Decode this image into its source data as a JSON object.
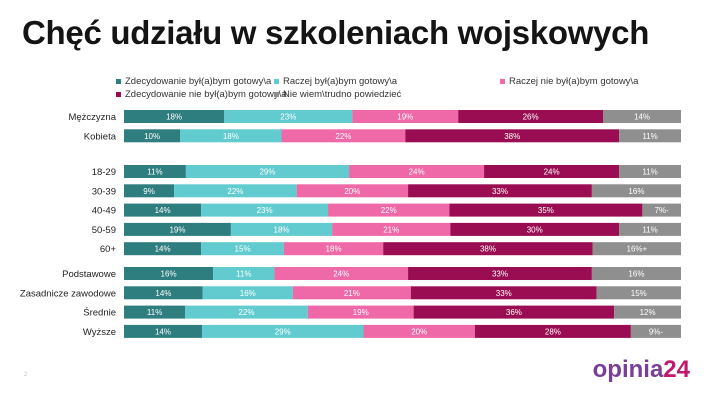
{
  "title": "Chęć udziału w szkoleniach wojskowych",
  "logo": {
    "main": "opinia",
    "number": "24"
  },
  "page_number": "2",
  "chart_data": {
    "type": "bar",
    "orientation": "horizontal",
    "stacked": true,
    "percent_stacked": true,
    "title": "Chęć udziału w szkoleniach wojskowych",
    "legend_position": "top",
    "grid": false,
    "series": [
      {
        "name": "Zdecydowanie był(a)bym gotowy\\a",
        "color": "#2e7d7f"
      },
      {
        "name": "Raczej był(a)bym gotowy\\a",
        "color": "#62cbcf"
      },
      {
        "name": "Raczej nie był(a)bym gotowy\\a",
        "color": "#ef68a7"
      },
      {
        "name": "Zdecydowanie nie był(a)bym gotowy\\a",
        "color": "#9b0d52"
      },
      {
        "name": "Nie wiem\\trudno powiedzieć",
        "color": "#8f8f8f"
      }
    ],
    "groups": [
      {
        "rows": [
          {
            "label": "Mężczyzna",
            "values": [
              18,
              23,
              19,
              26,
              14
            ],
            "value_labels": [
              "18%",
              "23%",
              "19%",
              "26%",
              "14%"
            ]
          },
          {
            "label": "Kobieta",
            "values": [
              10,
              18,
              22,
              38,
              11
            ],
            "value_labels": [
              "10%",
              "18%",
              "22%",
              "38%",
              "11%"
            ]
          }
        ]
      },
      {
        "rows": [
          {
            "label": "18-29",
            "values": [
              11,
              29,
              24,
              24,
              11
            ],
            "value_labels": [
              "11%",
              "29%",
              "24%",
              "24%",
              "11%"
            ]
          },
          {
            "label": "30-39",
            "values": [
              9,
              22,
              20,
              33,
              16
            ],
            "value_labels": [
              "9%",
              "22%",
              "20%",
              "33%",
              "16%"
            ]
          },
          {
            "label": "40-49",
            "values": [
              14,
              23,
              22,
              35,
              7
            ],
            "value_labels": [
              "14%",
              "23%",
              "22%",
              "35%",
              "7%-"
            ]
          },
          {
            "label": "50-59",
            "values": [
              19,
              18,
              21,
              30,
              11
            ],
            "value_labels": [
              "19%",
              "18%",
              "21%",
              "30%",
              "11%"
            ]
          },
          {
            "label": "60+",
            "values": [
              14,
              15,
              18,
              38,
              16
            ],
            "value_labels": [
              "14%",
              "15%",
              "18%",
              "38%",
              "16%+"
            ]
          }
        ]
      },
      {
        "rows": [
          {
            "label": "Podstawowe",
            "values": [
              16,
              11,
              24,
              33,
              16
            ],
            "value_labels": [
              "16%",
              "11%",
              "24%",
              "33%",
              "16%"
            ]
          },
          {
            "label": "Zasadnicze zawodowe",
            "values": [
              14,
              16,
              21,
              33,
              15
            ],
            "value_labels": [
              "14%",
              "16%",
              "21%",
              "33%",
              "15%"
            ]
          },
          {
            "label": "Średnie",
            "values": [
              11,
              22,
              19,
              36,
              12
            ],
            "value_labels": [
              "11%",
              "22%",
              "19%",
              "36%",
              "12%"
            ]
          },
          {
            "label": "Wyższe",
            "values": [
              14,
              29,
              20,
              28,
              9
            ],
            "value_labels": [
              "14%",
              "29%",
              "20%",
              "28%",
              "9%-"
            ]
          }
        ]
      }
    ]
  }
}
